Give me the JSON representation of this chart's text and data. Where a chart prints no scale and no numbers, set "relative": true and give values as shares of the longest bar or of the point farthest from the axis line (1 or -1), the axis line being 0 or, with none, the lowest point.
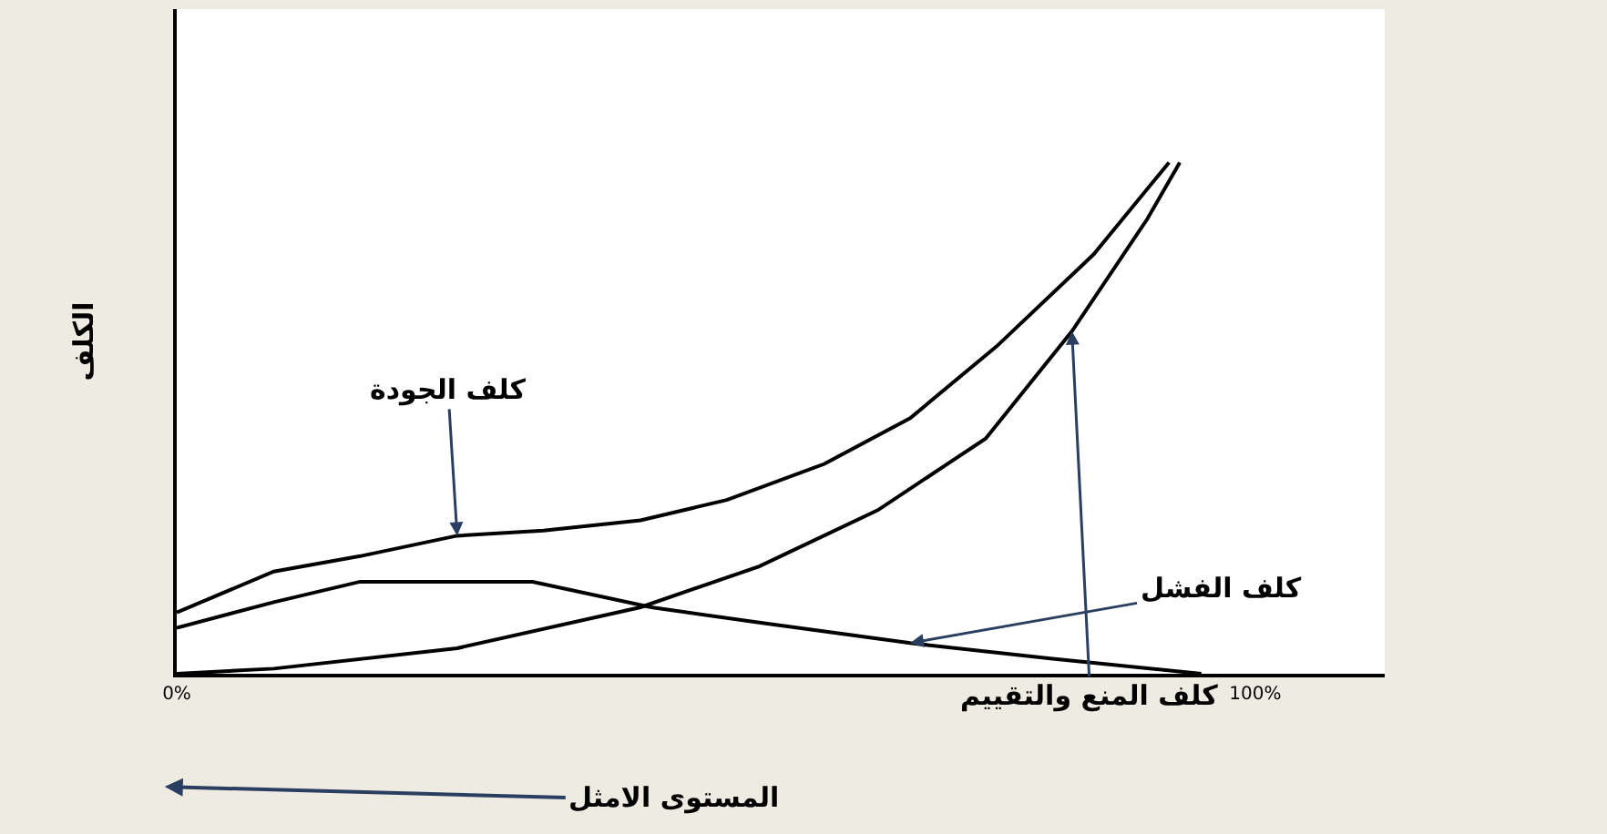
{
  "chart_data": {
    "type": "line",
    "relative": true,
    "ylabel": "الكلف",
    "xlim": [
      0,
      112
    ],
    "xticks": [
      {
        "value": 0,
        "label": "0%"
      },
      {
        "value": 100,
        "label": "100%"
      }
    ],
    "series": [
      {
        "color": "#000000",
        "x": [
          0,
          9,
          17,
          26,
          34,
          43,
          51,
          60,
          68,
          76,
          85,
          92
        ],
        "values": [
          0.12,
          0.2,
          0.23,
          0.27,
          0.28,
          0.3,
          0.34,
          0.41,
          0.5,
          0.64,
          0.82,
          1
        ]
      },
      {
        "color": "#000000",
        "x": [
          0,
          9,
          17,
          33,
          44,
          54,
          68,
          81,
          95
        ],
        "values": [
          0.09,
          0.14,
          0.18,
          0.18,
          0.13,
          0.1,
          0.06,
          0.03,
          0
        ]
      },
      {
        "color": "#000000",
        "x": [
          0,
          9,
          26,
          43,
          54,
          65,
          75,
          83,
          90,
          93
        ],
        "values": [
          0,
          0.01,
          0.05,
          0.13,
          0.21,
          0.32,
          0.46,
          0.67,
          0.89,
          1
        ]
      }
    ],
    "annotations": [
      {
        "text": "كلف الجودة",
        "x": 26,
        "y": 0.27
      },
      {
        "text": "كلف الفشل",
        "x": 68,
        "y": 0.06
      },
      {
        "text": "كلف المنع والتقييم",
        "x": 83,
        "y": 0.67
      },
      "المستوى الامثل"
    ],
    "marker": "none",
    "line_style": "solid"
  }
}
